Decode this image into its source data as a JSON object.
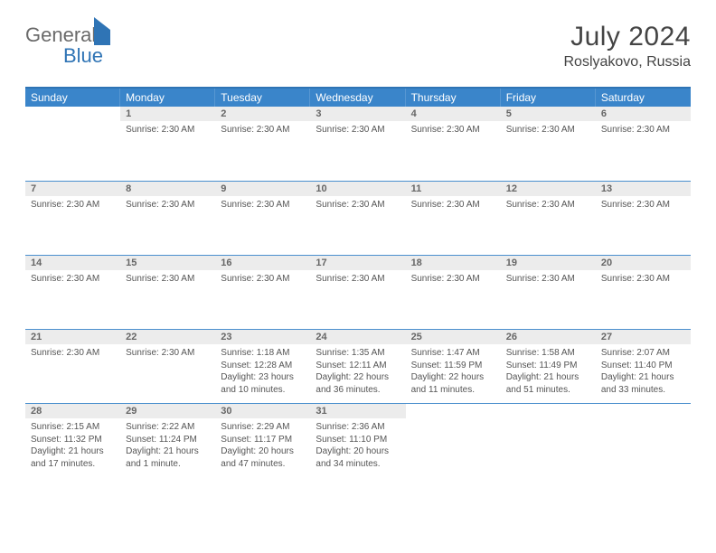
{
  "logo": {
    "general": "General",
    "blue": "Blue"
  },
  "title": "July 2024",
  "location": "Roslyakovo, Russia",
  "colors": {
    "header_blue": "#3a85ca",
    "border_blue": "#2f74b5",
    "date_bg": "#ececec",
    "text": "#555555"
  },
  "day_headers": [
    "Sunday",
    "Monday",
    "Tuesday",
    "Wednesday",
    "Thursday",
    "Friday",
    "Saturday"
  ],
  "weeks": [
    [
      {
        "date": "",
        "lines": []
      },
      {
        "date": "1",
        "lines": [
          "Sunrise: 2:30 AM"
        ]
      },
      {
        "date": "2",
        "lines": [
          "Sunrise: 2:30 AM"
        ]
      },
      {
        "date": "3",
        "lines": [
          "Sunrise: 2:30 AM"
        ]
      },
      {
        "date": "4",
        "lines": [
          "Sunrise: 2:30 AM"
        ]
      },
      {
        "date": "5",
        "lines": [
          "Sunrise: 2:30 AM"
        ]
      },
      {
        "date": "6",
        "lines": [
          "Sunrise: 2:30 AM"
        ]
      }
    ],
    [
      {
        "date": "7",
        "lines": [
          "Sunrise: 2:30 AM"
        ]
      },
      {
        "date": "8",
        "lines": [
          "Sunrise: 2:30 AM"
        ]
      },
      {
        "date": "9",
        "lines": [
          "Sunrise: 2:30 AM"
        ]
      },
      {
        "date": "10",
        "lines": [
          "Sunrise: 2:30 AM"
        ]
      },
      {
        "date": "11",
        "lines": [
          "Sunrise: 2:30 AM"
        ]
      },
      {
        "date": "12",
        "lines": [
          "Sunrise: 2:30 AM"
        ]
      },
      {
        "date": "13",
        "lines": [
          "Sunrise: 2:30 AM"
        ]
      }
    ],
    [
      {
        "date": "14",
        "lines": [
          "Sunrise: 2:30 AM"
        ]
      },
      {
        "date": "15",
        "lines": [
          "Sunrise: 2:30 AM"
        ]
      },
      {
        "date": "16",
        "lines": [
          "Sunrise: 2:30 AM"
        ]
      },
      {
        "date": "17",
        "lines": [
          "Sunrise: 2:30 AM"
        ]
      },
      {
        "date": "18",
        "lines": [
          "Sunrise: 2:30 AM"
        ]
      },
      {
        "date": "19",
        "lines": [
          "Sunrise: 2:30 AM"
        ]
      },
      {
        "date": "20",
        "lines": [
          "Sunrise: 2:30 AM"
        ]
      }
    ],
    [
      {
        "date": "21",
        "lines": [
          "Sunrise: 2:30 AM"
        ]
      },
      {
        "date": "22",
        "lines": [
          "Sunrise: 2:30 AM"
        ]
      },
      {
        "date": "23",
        "lines": [
          "Sunrise: 1:18 AM",
          "Sunset: 12:28 AM",
          "Daylight: 23 hours and 10 minutes."
        ]
      },
      {
        "date": "24",
        "lines": [
          "Sunrise: 1:35 AM",
          "Sunset: 12:11 AM",
          "Daylight: 22 hours and 36 minutes."
        ]
      },
      {
        "date": "25",
        "lines": [
          "Sunrise: 1:47 AM",
          "Sunset: 11:59 PM",
          "Daylight: 22 hours and 11 minutes."
        ]
      },
      {
        "date": "26",
        "lines": [
          "Sunrise: 1:58 AM",
          "Sunset: 11:49 PM",
          "Daylight: 21 hours and 51 minutes."
        ]
      },
      {
        "date": "27",
        "lines": [
          "Sunrise: 2:07 AM",
          "Sunset: 11:40 PM",
          "Daylight: 21 hours and 33 minutes."
        ]
      }
    ],
    [
      {
        "date": "28",
        "lines": [
          "Sunrise: 2:15 AM",
          "Sunset: 11:32 PM",
          "Daylight: 21 hours and 17 minutes."
        ]
      },
      {
        "date": "29",
        "lines": [
          "Sunrise: 2:22 AM",
          "Sunset: 11:24 PM",
          "Daylight: 21 hours and 1 minute."
        ]
      },
      {
        "date": "30",
        "lines": [
          "Sunrise: 2:29 AM",
          "Sunset: 11:17 PM",
          "Daylight: 20 hours and 47 minutes."
        ]
      },
      {
        "date": "31",
        "lines": [
          "Sunrise: 2:36 AM",
          "Sunset: 11:10 PM",
          "Daylight: 20 hours and 34 minutes."
        ]
      },
      {
        "date": "",
        "lines": []
      },
      {
        "date": "",
        "lines": []
      },
      {
        "date": "",
        "lines": []
      }
    ]
  ]
}
